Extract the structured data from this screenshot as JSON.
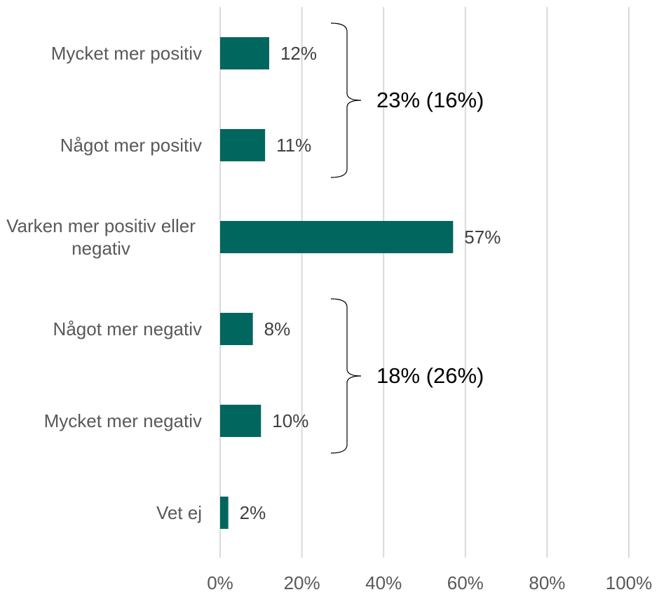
{
  "chart_data": {
    "type": "bar",
    "orientation": "horizontal",
    "categories": [
      "Mycket mer positiv",
      "Något mer positiv",
      "Varken mer positiv eller negativ",
      "Något mer negativ",
      "Mycket mer negativ",
      "Vet ej"
    ],
    "values": [
      12,
      11,
      57,
      8,
      10,
      2
    ],
    "value_labels": [
      "12%",
      "11%",
      "57%",
      "8%",
      "10%",
      "2%"
    ],
    "color": "#00665e",
    "xlim": [
      0,
      100
    ],
    "xticks": [
      {
        "value": 0,
        "label": "0%"
      },
      {
        "value": 20,
        "label": "20%"
      },
      {
        "value": 40,
        "label": "40%"
      },
      {
        "value": 60,
        "label": "60%"
      },
      {
        "value": 80,
        "label": "80%"
      },
      {
        "value": 100,
        "label": "100%"
      }
    ],
    "grid": true,
    "annotations": [
      {
        "text": "23% (16%)"
      },
      {
        "text": "18% (26%)"
      }
    ]
  }
}
